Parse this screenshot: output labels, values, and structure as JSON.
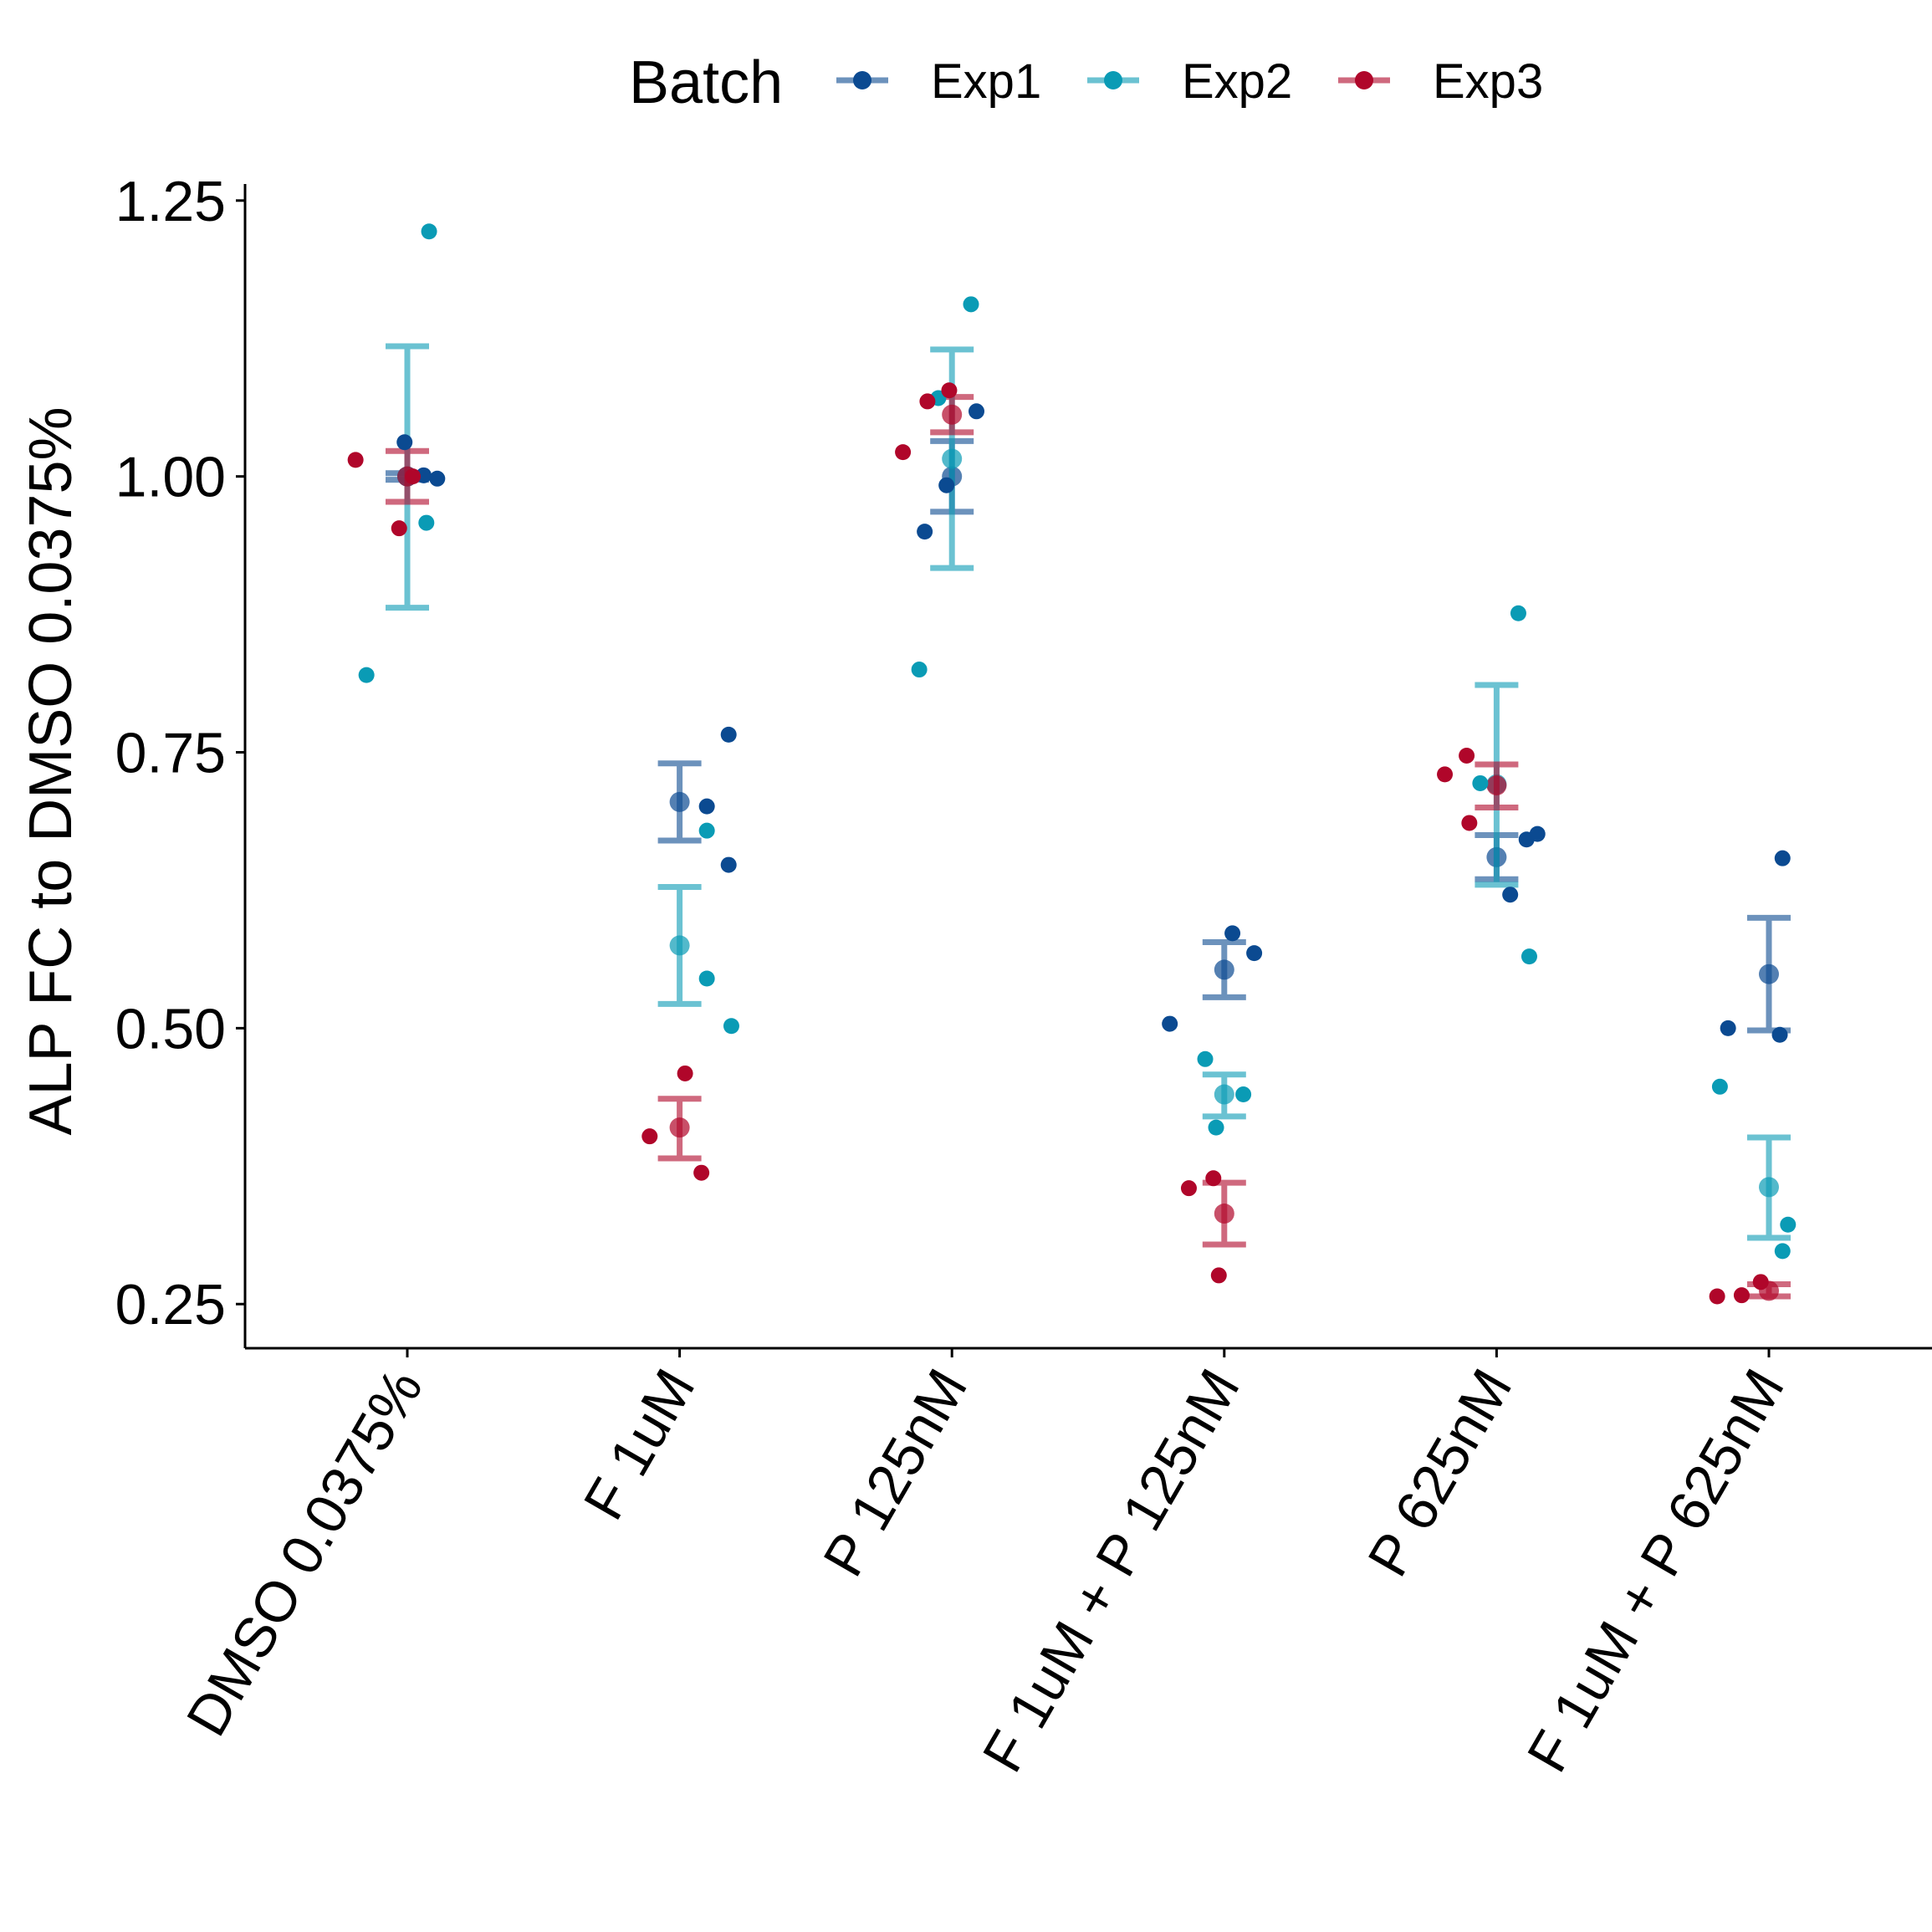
{
  "chart_data": {
    "type": "scatter",
    "ylabel": "ALP FC to DMSO 0.0375%",
    "xlabel": "",
    "categories": [
      "DMSO 0.0375%",
      "F 1uM",
      "P 125nM",
      "F 1uM + P 125nM",
      "P 625nM",
      "F 1uM + P 625nM"
    ],
    "ylim": [
      0.21,
      1.265
    ],
    "yticks": [
      "0.25",
      "0.50",
      "0.75",
      "1.00",
      "1.25"
    ],
    "legend": {
      "title": "Batch",
      "position": "top"
    },
    "colors": {
      "Exp1": "#0b4a91",
      "Exp2": "#0a9bb5",
      "Exp3": "#b0062a"
    },
    "series": [
      {
        "name": "Exp1",
        "points": [
          [
            0,
            1.031,
            -0.01
          ],
          [
            0,
            1.001,
            0.06
          ],
          [
            0,
            0.998,
            0.11
          ],
          [
            1,
            0.766,
            0.18
          ],
          [
            1,
            0.701,
            0.1
          ],
          [
            1,
            0.648,
            0.18
          ],
          [
            2,
            0.95,
            -0.1
          ],
          [
            2,
            0.992,
            -0.02
          ],
          [
            2,
            1.059,
            0.09
          ],
          [
            3,
            0.504,
            -0.2
          ],
          [
            3,
            0.586,
            0.03
          ],
          [
            3,
            0.568,
            0.11
          ],
          [
            4,
            0.676,
            0.15
          ],
          [
            4,
            0.671,
            0.11
          ],
          [
            4,
            0.621,
            0.05
          ],
          [
            5,
            0.654,
            0.05
          ],
          [
            5,
            0.5,
            -0.15
          ],
          [
            5,
            0.494,
            0.04
          ]
        ],
        "summary": [
          {
            "cat": 0,
            "mean": 1.0,
            "low": 0.997,
            "high": 1.003
          },
          {
            "cat": 1,
            "mean": 0.705,
            "low": 0.67,
            "high": 0.74
          },
          {
            "cat": 2,
            "mean": 1.0,
            "low": 0.968,
            "high": 1.032
          },
          {
            "cat": 3,
            "mean": 0.553,
            "low": 0.528,
            "high": 0.578
          },
          {
            "cat": 4,
            "mean": 0.655,
            "low": 0.635,
            "high": 0.675
          },
          {
            "cat": 5,
            "mean": 0.549,
            "low": 0.498,
            "high": 0.6
          }
        ]
      },
      {
        "name": "Exp2",
        "points": [
          [
            0,
            1.222,
            0.08
          ],
          [
            0,
            0.958,
            0.07
          ],
          [
            0,
            0.82,
            -0.15
          ],
          [
            1,
            0.679,
            0.1
          ],
          [
            1,
            0.545,
            0.1
          ],
          [
            1,
            0.502,
            0.19
          ],
          [
            2,
            1.156,
            0.07
          ],
          [
            2,
            1.071,
            -0.05
          ],
          [
            2,
            0.825,
            -0.12
          ],
          [
            3,
            0.472,
            -0.07
          ],
          [
            3,
            0.44,
            0.07
          ],
          [
            3,
            0.41,
            -0.03
          ],
          [
            4,
            0.876,
            0.08
          ],
          [
            4,
            0.722,
            -0.06
          ],
          [
            4,
            0.565,
            0.12
          ],
          [
            5,
            0.447,
            -0.18
          ],
          [
            5,
            0.322,
            0.07
          ],
          [
            5,
            0.298,
            0.05
          ]
        ],
        "summary": [
          {
            "cat": 0,
            "mean": 1.0,
            "low": 0.881,
            "high": 1.118
          },
          {
            "cat": 1,
            "mean": 0.575,
            "low": 0.522,
            "high": 0.628
          },
          {
            "cat": 2,
            "mean": 1.016,
            "low": 0.917,
            "high": 1.115
          },
          {
            "cat": 3,
            "mean": 0.44,
            "low": 0.42,
            "high": 0.458
          },
          {
            "cat": 4,
            "mean": 0.721,
            "low": 0.63,
            "high": 0.811
          },
          {
            "cat": 5,
            "mean": 0.356,
            "low": 0.31,
            "high": 0.401
          }
        ]
      },
      {
        "name": "Exp3",
        "points": [
          [
            0,
            1.015,
            -0.19
          ],
          [
            0,
            0.953,
            -0.03
          ],
          [
            0,
            1.0,
            0.02
          ],
          [
            1,
            0.459,
            0.02
          ],
          [
            1,
            0.402,
            -0.11
          ],
          [
            1,
            0.369,
            0.08
          ],
          [
            2,
            1.078,
            -0.01
          ],
          [
            2,
            1.068,
            -0.09
          ],
          [
            2,
            1.022,
            -0.18
          ],
          [
            3,
            0.364,
            -0.04
          ],
          [
            3,
            0.355,
            -0.13
          ],
          [
            3,
            0.276,
            -0.02
          ],
          [
            4,
            0.747,
            -0.11
          ],
          [
            4,
            0.73,
            -0.19
          ],
          [
            4,
            0.686,
            -0.1
          ],
          [
            5,
            0.27,
            -0.03
          ],
          [
            5,
            0.258,
            -0.1
          ],
          [
            5,
            0.257,
            -0.19
          ]
        ],
        "summary": [
          {
            "cat": 0,
            "mean": 1.0,
            "low": 0.977,
            "high": 1.023
          },
          {
            "cat": 1,
            "mean": 0.41,
            "low": 0.382,
            "high": 0.436
          },
          {
            "cat": 2,
            "mean": 1.056,
            "low": 1.04,
            "high": 1.072
          },
          {
            "cat": 3,
            "mean": 0.332,
            "low": 0.304,
            "high": 0.36
          },
          {
            "cat": 4,
            "mean": 0.72,
            "low": 0.7,
            "high": 0.739
          },
          {
            "cat": 5,
            "mean": 0.262,
            "low": 0.257,
            "high": 0.268
          }
        ]
      }
    ]
  }
}
